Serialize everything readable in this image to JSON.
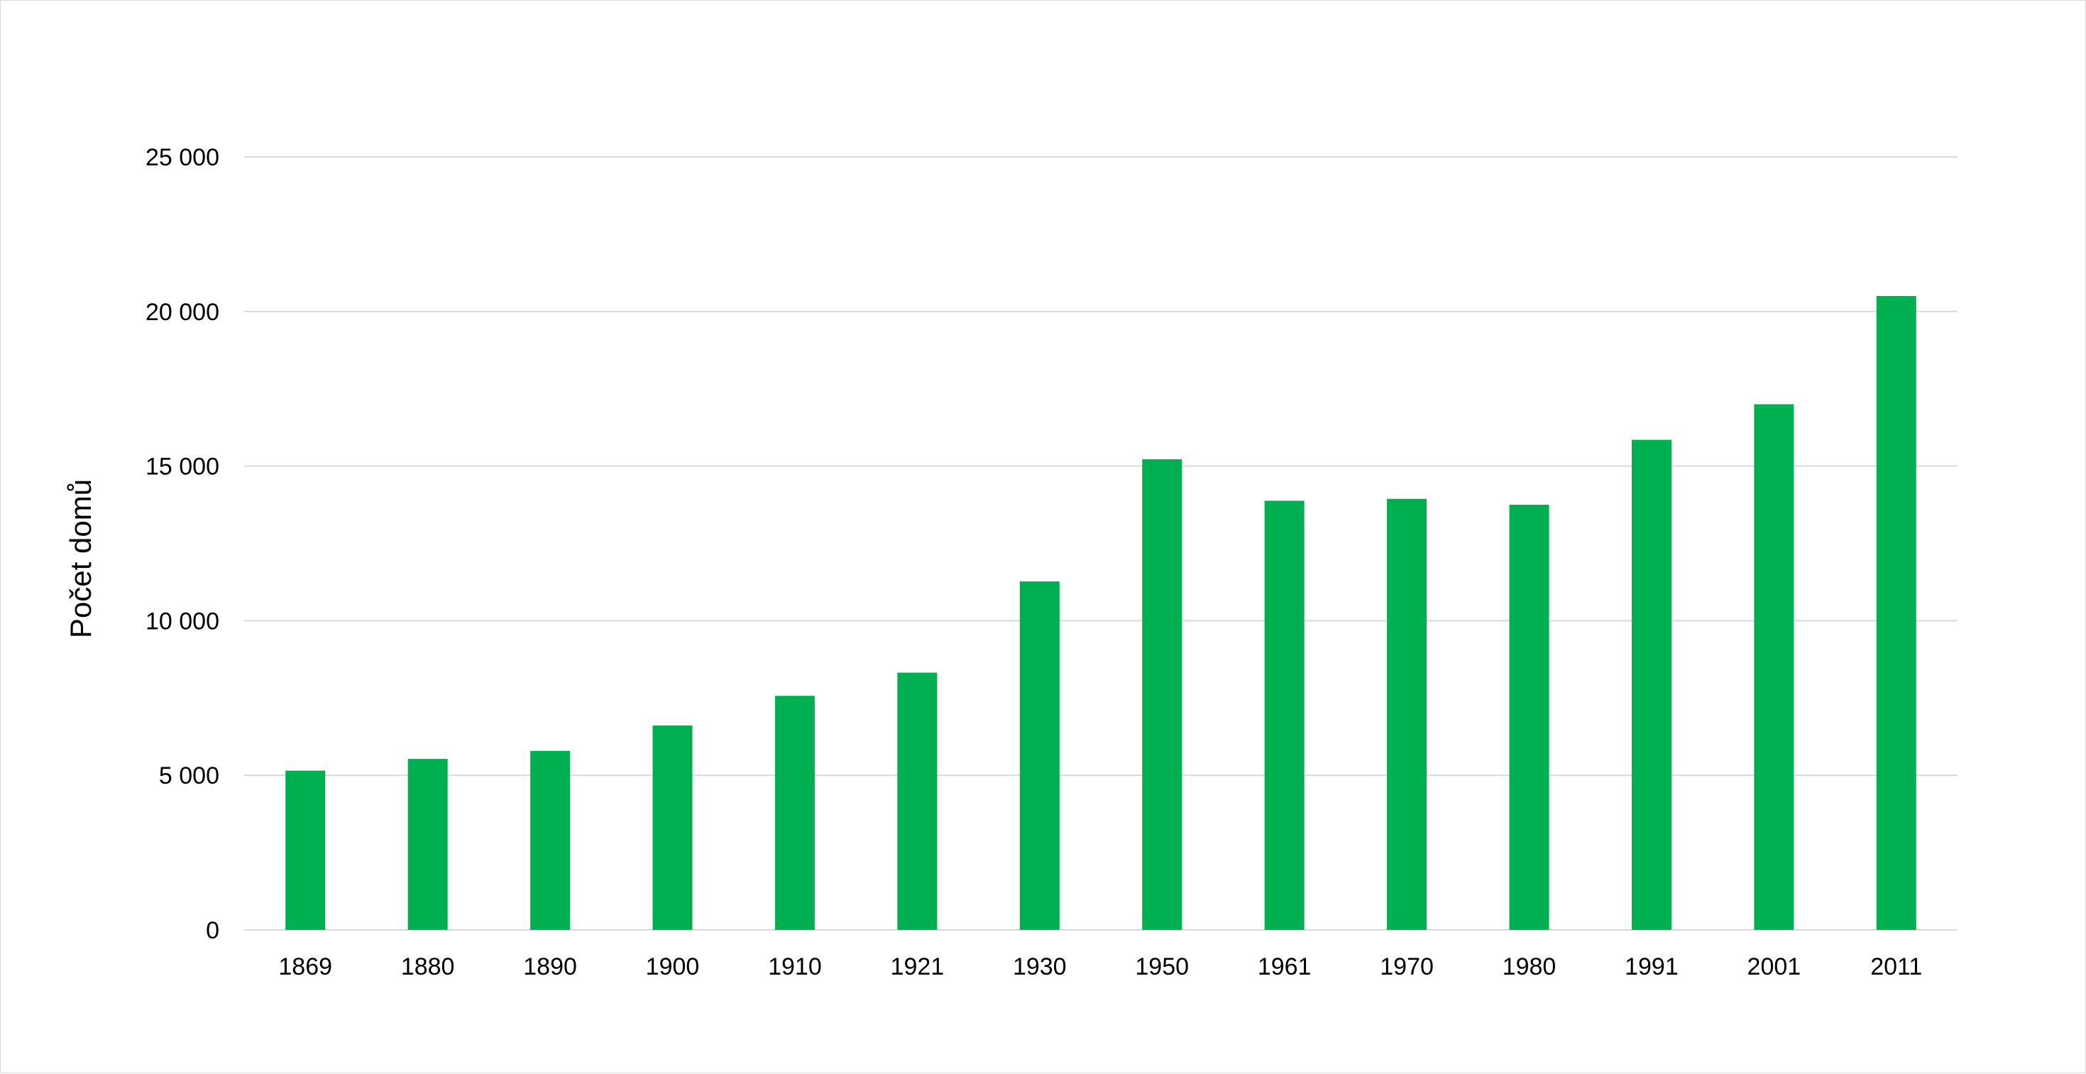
{
  "chart_data": {
    "type": "bar",
    "title": "",
    "xlabel": "",
    "ylabel": "Počet domů",
    "categories": [
      "1869",
      "1880",
      "1890",
      "1900",
      "1910",
      "1921",
      "1930",
      "1950",
      "1961",
      "1970",
      "1980",
      "1991",
      "2001",
      "2011"
    ],
    "values": [
      5150,
      5530,
      5790,
      6610,
      7570,
      8320,
      11270,
      15220,
      13880,
      13940,
      13750,
      15850,
      17000,
      20500
    ],
    "ylim": [
      0,
      25000
    ],
    "yticks": [
      0,
      5000,
      10000,
      15000,
      20000,
      25000
    ],
    "ytick_labels": [
      "0",
      "5 000",
      "10 000",
      "15 000",
      "20 000",
      "25 000"
    ],
    "grid": true,
    "legend": "none",
    "bar_color": "#00b050",
    "grid_color": "#d9d9d9"
  }
}
